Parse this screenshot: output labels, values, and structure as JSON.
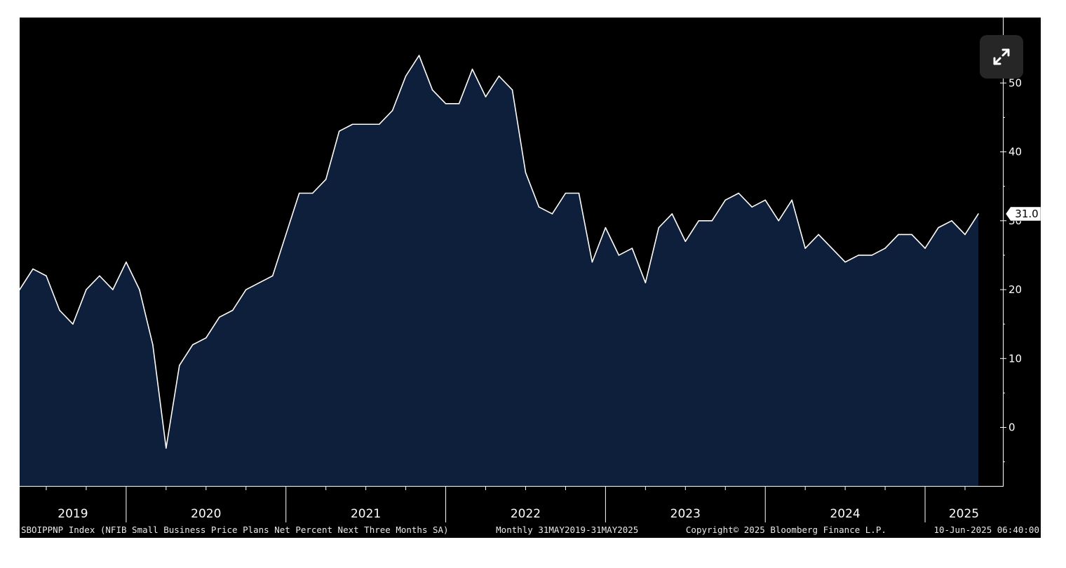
{
  "chart_data": {
    "type": "area",
    "y_axis_position": "right",
    "ylim": [
      -8.5,
      59.5
    ],
    "y_ticks": [
      "50",
      "40",
      "30",
      "20",
      "10",
      "0"
    ],
    "x_year_labels": [
      "2019",
      "2020",
      "2021",
      "2022",
      "2023",
      "2024",
      "2025"
    ],
    "x_start": "2019-05",
    "x_end": "2025-05",
    "last_value_label": "31.0",
    "series": [
      {
        "color": "#ffffff",
        "fill": "#0e1f3b",
        "x": [
          "2019-05",
          "2019-06",
          "2019-07",
          "2019-08",
          "2019-09",
          "2019-10",
          "2019-11",
          "2019-12",
          "2020-01",
          "2020-02",
          "2020-03",
          "2020-04",
          "2020-05",
          "2020-06",
          "2020-07",
          "2020-08",
          "2020-09",
          "2020-10",
          "2020-11",
          "2020-12",
          "2021-01",
          "2021-02",
          "2021-03",
          "2021-04",
          "2021-05",
          "2021-06",
          "2021-07",
          "2021-08",
          "2021-09",
          "2021-10",
          "2021-11",
          "2021-12",
          "2022-01",
          "2022-02",
          "2022-03",
          "2022-04",
          "2022-05",
          "2022-06",
          "2022-07",
          "2022-08",
          "2022-09",
          "2022-10",
          "2022-11",
          "2022-12",
          "2023-01",
          "2023-02",
          "2023-03",
          "2023-04",
          "2023-05",
          "2023-06",
          "2023-07",
          "2023-08",
          "2023-09",
          "2023-10",
          "2023-11",
          "2023-12",
          "2024-01",
          "2024-02",
          "2024-03",
          "2024-04",
          "2024-05",
          "2024-06",
          "2024-07",
          "2024-08",
          "2024-09",
          "2024-10",
          "2024-11",
          "2024-12",
          "2025-01",
          "2025-02",
          "2025-03",
          "2025-04",
          "2025-05"
        ],
        "values": [
          20,
          23,
          22,
          17,
          15,
          20,
          22,
          20,
          24,
          20,
          12,
          -3,
          9,
          12,
          13,
          16,
          17,
          20,
          21,
          22,
          28,
          34,
          34,
          36,
          43,
          44,
          44,
          44,
          46,
          51,
          54,
          49,
          47,
          47,
          52,
          48,
          51,
          49,
          37,
          32,
          31,
          34,
          34,
          24,
          29,
          25,
          26,
          21,
          29,
          31,
          27,
          30,
          30,
          33,
          34,
          32,
          33,
          30,
          33,
          26,
          28,
          26,
          24,
          25,
          25,
          26,
          28,
          28,
          26,
          29,
          30,
          28,
          31
        ]
      }
    ]
  },
  "footer": {
    "description": "SBOIPPNP Index (NFIB Small Business Price Plans Net Percent Next Three Months SA)",
    "period": "Monthly 31MAY2019-31MAY2025",
    "copyright": "Copyright© 2025 Bloomberg Finance L.P.",
    "timestamp": "10-Jun-2025 06:40:00"
  },
  "controls": {
    "expand_icon": "expand-arrows-icon"
  }
}
